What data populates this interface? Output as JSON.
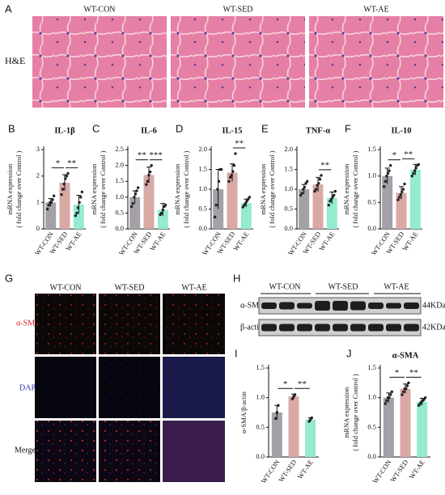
{
  "chart_data": [
    {
      "type": "bar",
      "panel": "B",
      "title": "IL-1β",
      "ylabel": [
        "mRNA expression",
        "( fold change over Control )"
      ],
      "categories": [
        "WT-CON",
        "WT-SED",
        "WT-AE"
      ],
      "values": [
        1.0,
        1.75,
        0.92
      ],
      "errors": [
        0.15,
        0.3,
        0.35
      ],
      "points": [
        [
          0.75,
          0.9,
          1.0,
          1.0,
          1.1,
          1.25
        ],
        [
          1.3,
          1.5,
          1.7,
          1.9,
          2.0,
          2.1
        ],
        [
          0.5,
          0.6,
          0.8,
          1.0,
          1.2,
          1.4
        ]
      ],
      "colors": [
        "#a3a0a8",
        "#d9a9a6",
        "#94ebcf"
      ],
      "ylim": [
        0,
        3
      ],
      "yticks": [
        0,
        1,
        2,
        3
      ],
      "significance": [
        "*",
        "**"
      ]
    },
    {
      "type": "bar",
      "panel": "C",
      "title": "IL-6",
      "ylabel": [
        "mRNA expression",
        "( fold change over Control )"
      ],
      "categories": [
        "WT-CON",
        "WT-SED",
        "WT-AE"
      ],
      "values": [
        1.0,
        1.7,
        0.6
      ],
      "errors": [
        0.2,
        0.25,
        0.2
      ],
      "points": [
        [
          0.7,
          0.8,
          1.0,
          1.1,
          1.2,
          1.3
        ],
        [
          1.4,
          1.5,
          1.7,
          1.8,
          2.0
        ],
        [
          0.45,
          0.5,
          0.6,
          0.7,
          0.75
        ]
      ],
      "colors": [
        "#a3a0a8",
        "#d9a9a6",
        "#94ebcf"
      ],
      "ylim": [
        0,
        2.5
      ],
      "yticks": [
        {
          "value": 0,
          "label": "0.0"
        },
        0.5,
        {
          "value": 1,
          "label": "1.0"
        },
        1.5,
        {
          "value": 2,
          "label": "2.0"
        },
        2.5
      ],
      "significance": [
        "**",
        "***"
      ]
    },
    {
      "type": "bar",
      "panel": "D",
      "title": "IL-15",
      "ylabel": [
        "mRNA expression",
        "( fold change over Control )"
      ],
      "categories": [
        "WT-CON",
        "WT-SED",
        "WT-AE"
      ],
      "values": [
        1.0,
        1.42,
        0.65
      ],
      "errors": [
        0.5,
        0.22,
        0.1
      ],
      "points": [
        [
          0.3,
          0.6,
          1.0,
          1.2,
          1.5,
          1.5
        ],
        [
          1.2,
          1.3,
          1.35,
          1.45,
          1.6,
          1.9
        ],
        [
          0.55,
          0.6,
          0.65,
          0.7,
          0.75,
          0.8
        ]
      ],
      "colors": [
        "#a3a0a8",
        "#d9a9a6",
        "#94ebcf"
      ],
      "ylim": [
        0,
        2
      ],
      "yticks": [
        {
          "value": 0,
          "label": "0.0"
        },
        0.5,
        {
          "value": 1,
          "label": "1.0"
        },
        1.5,
        {
          "value": 2,
          "label": "2.0"
        }
      ],
      "significance": [
        null,
        "**"
      ]
    },
    {
      "type": "bar",
      "panel": "E",
      "title": "TNF-α",
      "ylabel": [
        "mRNA expression",
        "( fold change over Control )"
      ],
      "categories": [
        "WT-CON",
        "WT-SED",
        "WT-AE"
      ],
      "values": [
        1.0,
        1.12,
        0.78
      ],
      "errors": [
        0.12,
        0.18,
        0.15
      ],
      "points": [
        [
          0.85,
          0.9,
          1.0,
          1.05,
          1.15,
          1.2
        ],
        [
          0.95,
          1.0,
          1.1,
          1.15,
          1.25,
          1.35
        ],
        [
          0.6,
          0.7,
          0.75,
          0.8,
          0.85,
          0.95
        ]
      ],
      "colors": [
        "#a3a0a8",
        "#d9a9a6",
        "#94ebcf"
      ],
      "ylim": [
        0,
        2
      ],
      "yticks": [
        {
          "value": 0,
          "label": "0.0"
        },
        0.5,
        {
          "value": 1,
          "label": "1.0"
        },
        1.5,
        {
          "value": 2,
          "label": "2.0"
        }
      ],
      "significance": [
        null,
        "**"
      ]
    },
    {
      "type": "bar",
      "panel": "F",
      "title": "IL-10",
      "ylabel": [
        "mRNA expression",
        "( fold change over Control )"
      ],
      "categories": [
        "WT-CON",
        "WT-SED",
        "WT-AE"
      ],
      "values": [
        1.0,
        0.68,
        1.12
      ],
      "errors": [
        0.15,
        0.12,
        0.1
      ],
      "points": [
        [
          0.8,
          0.9,
          1.0,
          1.05,
          1.1,
          1.2
        ],
        [
          0.55,
          0.6,
          0.65,
          0.7,
          0.75,
          0.85
        ],
        [
          1.0,
          1.05,
          1.1,
          1.15,
          1.2,
          1.22
        ]
      ],
      "colors": [
        "#a3a0a8",
        "#d9a9a6",
        "#94ebcf"
      ],
      "ylim": [
        0,
        1.5
      ],
      "yticks": [
        {
          "value": 0,
          "label": "0.0"
        },
        0.5,
        {
          "value": 1,
          "label": "1.0"
        },
        1.5
      ],
      "significance": [
        "*",
        "**"
      ]
    },
    {
      "type": "bar",
      "panel": "I",
      "ylabel": [
        "α-SMA/β-actin"
      ],
      "categories": [
        "WT-CON",
        "WT-SED",
        "WT-AE"
      ],
      "values": [
        0.75,
        1.02,
        0.63
      ],
      "errors": [
        0.12,
        0.04,
        0.03
      ],
      "points": [
        [
          0.65,
          0.75,
          0.87
        ],
        [
          0.98,
          1.02,
          1.05
        ],
        [
          0.6,
          0.63,
          0.66
        ]
      ],
      "colors": [
        "#a3a0a8",
        "#d9a9a6",
        "#94ebcf"
      ],
      "ylim": [
        0,
        1.5
      ],
      "yticks": [
        {
          "value": 0,
          "label": "0.0"
        },
        0.5,
        {
          "value": 1,
          "label": "1.0"
        },
        1.5
      ],
      "significance": [
        "*",
        "**"
      ]
    },
    {
      "type": "bar",
      "panel": "J",
      "title": "α-SMA",
      "ylabel": [
        "mRNA expression",
        "( fold change over Control )"
      ],
      "categories": [
        "WT-CON",
        "WT-SED",
        "WT-AE"
      ],
      "values": [
        1.0,
        1.15,
        0.93
      ],
      "errors": [
        0.08,
        0.08,
        0.06
      ],
      "points": [
        [
          0.9,
          0.95,
          1.0,
          1.0,
          1.05,
          1.1
        ],
        [
          1.05,
          1.1,
          1.15,
          1.15,
          1.2,
          1.25
        ],
        [
          0.87,
          0.9,
          0.93,
          0.95,
          0.97,
          1.0
        ]
      ],
      "colors": [
        "#a3a0a8",
        "#d9a9a6",
        "#94ebcf"
      ],
      "ylim": [
        0,
        1.5
      ],
      "yticks": [
        {
          "value": 0,
          "label": "0.0"
        },
        0.5,
        {
          "value": 1,
          "label": "1.0"
        },
        1.5
      ],
      "significance": [
        "*",
        "**"
      ]
    }
  ],
  "panel_a": {
    "letter": "A",
    "row_label": "H&E",
    "columns": [
      "WT-CON",
      "WT-SED",
      "WT-AE"
    ]
  },
  "panel_g": {
    "letter": "G",
    "columns": [
      "WT-CON",
      "WT-SED",
      "WT-AE"
    ],
    "rows": [
      "α-SMA",
      "DAPI",
      "Merge"
    ]
  },
  "panel_h": {
    "letter": "H",
    "groups": [
      "WT-CON",
      "WT-SED",
      "WT-AE"
    ],
    "bands": [
      {
        "name": "α-SMA",
        "size": "44KDa"
      },
      {
        "name": "β-actin",
        "size": "42KDa"
      }
    ]
  }
}
